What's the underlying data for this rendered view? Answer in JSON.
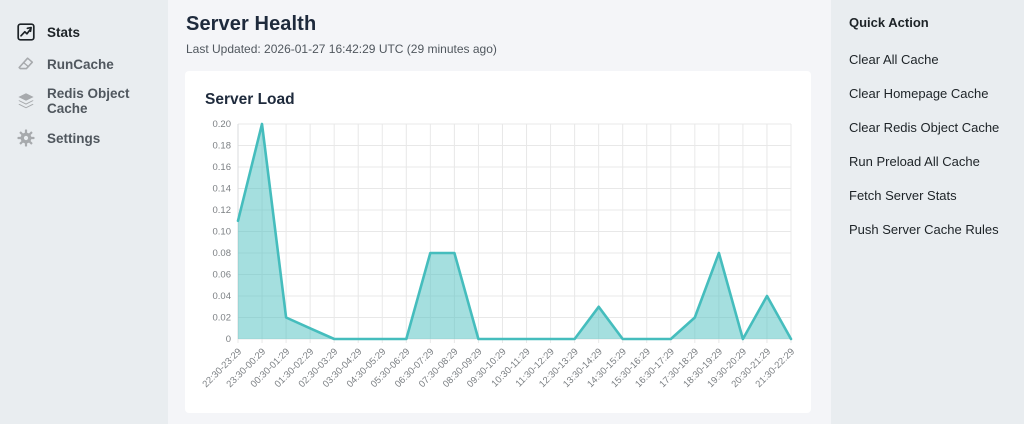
{
  "left_sidebar": {
    "items": [
      {
        "label": "Stats",
        "icon": "stats-chart-icon",
        "active": true
      },
      {
        "label": "RunCache",
        "icon": "eraser-icon",
        "active": false
      },
      {
        "label": "Redis Object Cache",
        "icon": "layers-icon",
        "active": false
      },
      {
        "label": "Settings",
        "icon": "gear-icon",
        "active": false
      }
    ]
  },
  "header": {
    "title": "Server Health",
    "last_updated": "Last Updated: 2026-01-27 16:42:29 UTC (29 minutes ago)"
  },
  "chart_data": {
    "type": "area",
    "title": "Server Load",
    "categories": [
      "22:30-23:29",
      "23:30-00:29",
      "00:30-01:29",
      "01:30-02:29",
      "02:30-03:29",
      "03:30-04:29",
      "04:30-05:29",
      "05:30-06:29",
      "06:30-07:29",
      "07:30-08:29",
      "08:30-09:29",
      "09:30-10:29",
      "10:30-11:29",
      "11:30-12:29",
      "12:30-13:29",
      "13:30-14:29",
      "14:30-15:29",
      "15:30-16:29",
      "16:30-17:29",
      "17:30-18:29",
      "18:30-19:29",
      "19:30-20:29",
      "20:30-21:29",
      "21:30-22:29"
    ],
    "values": [
      0.11,
      0.2,
      0.02,
      0.01,
      0,
      0,
      0,
      0,
      0.08,
      0.08,
      0,
      0,
      0,
      0,
      0,
      0.03,
      0,
      0,
      0,
      0.02,
      0.08,
      0,
      0.04,
      0
    ],
    "xlabel": "",
    "ylabel": "",
    "ylim": [
      0,
      0.2
    ],
    "ytick_step": 0.02,
    "grid": true,
    "legend": "none",
    "line_color": "#45bdbd",
    "fill_color": "rgba(75,192,192,0.5)",
    "grid_color": "#e8e8e8",
    "tick_color": "#7b7f83"
  },
  "quick_actions": {
    "title": "Quick Action",
    "items": [
      "Clear All Cache",
      "Clear Homepage Cache",
      "Clear Redis Object Cache",
      "Run Preload All Cache",
      "Fetch Server Stats",
      "Push Server Cache Rules"
    ]
  }
}
